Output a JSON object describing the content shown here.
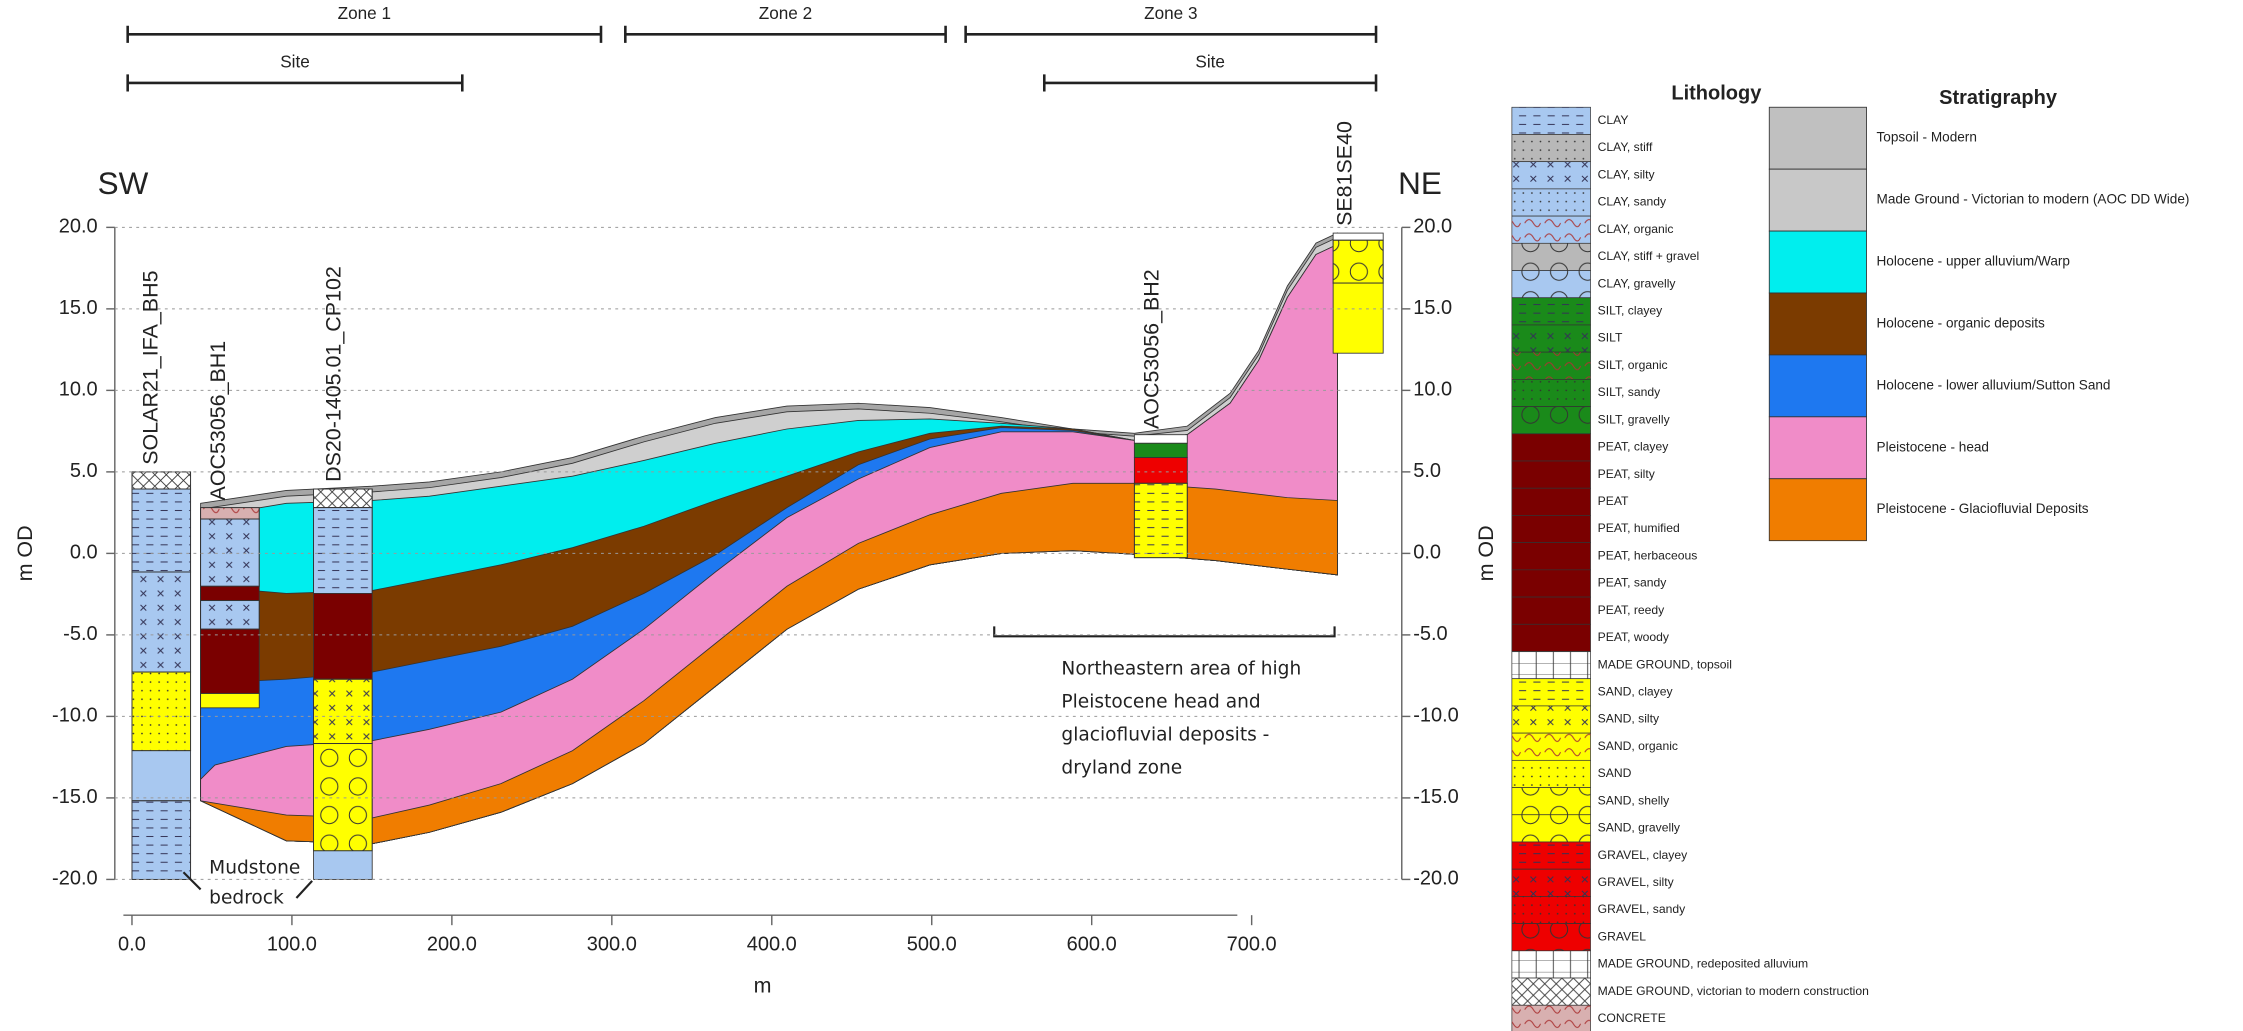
{
  "zones": [
    {
      "label": "Zone 1"
    },
    {
      "label": "Zone 2"
    },
    {
      "label": "Zone 3"
    }
  ],
  "sites": [
    {
      "label": "Site"
    },
    {
      "label": "Site"
    }
  ],
  "directions": {
    "left": "SW",
    "right": "NE"
  },
  "y_axis": {
    "label": "m OD",
    "ticks": [
      {
        "value": 20,
        "label": "20.0"
      },
      {
        "value": 15,
        "label": "15.0"
      },
      {
        "value": 10,
        "label": "10.0"
      },
      {
        "value": 5,
        "label": "5.0"
      },
      {
        "value": 0,
        "label": "0.0"
      },
      {
        "value": -5,
        "label": "-5.0"
      },
      {
        "value": -10,
        "label": "-10.0"
      },
      {
        "value": -15,
        "label": "-15.0"
      },
      {
        "value": -20,
        "label": "-20.0"
      }
    ]
  },
  "x_axis": {
    "label": "m",
    "ticks": [
      {
        "value": 0,
        "label": "0.0"
      },
      {
        "value": 100,
        "label": "100.0"
      },
      {
        "value": 200,
        "label": "200.0"
      },
      {
        "value": 300,
        "label": "300.0"
      },
      {
        "value": 400,
        "label": "400.0"
      },
      {
        "value": 500,
        "label": "500.0"
      },
      {
        "value": 600,
        "label": "600.0"
      },
      {
        "value": 700,
        "label": "700.0"
      }
    ]
  },
  "boreholes": [
    "SOLAR21_IFA_BH5",
    "AOC53056_BH1",
    "DS20-1405.01_CP102",
    "AOC53056_BH2",
    "SE81SE40"
  ],
  "annotations": {
    "bedrock": [
      "Mudstone",
      "bedrock"
    ],
    "dryland": [
      "Northeastern area of high",
      "Pleistocene head and",
      "glaciofluvial deposits -",
      "dryland zone"
    ]
  },
  "lithology": {
    "title": "Lithology",
    "items": [
      "CLAY",
      "CLAY, stiff",
      "CLAY, silty",
      "CLAY, sandy",
      "CLAY, organic",
      "CLAY, stiff + gravel",
      "CLAY, gravelly",
      "SILT, clayey",
      "SILT",
      "SILT, organic",
      "SILT, sandy",
      "SILT, gravelly",
      "PEAT, clayey",
      "PEAT, silty",
      "PEAT",
      "PEAT, humified",
      "PEAT, herbaceous",
      "PEAT, sandy",
      "PEAT, reedy",
      "PEAT, woody",
      "MADE GROUND, topsoil",
      "SAND, clayey",
      "SAND, silty",
      "SAND, organic",
      "SAND",
      "SAND, shelly",
      "SAND, gravelly",
      "GRAVEL, clayey",
      "GRAVEL, silty",
      "GRAVEL, sandy",
      "GRAVEL",
      "MADE GROUND,  redeposited alluvium",
      "MADE GROUND, victorian to modern construction",
      "CONCRETE"
    ]
  },
  "stratigraphy": {
    "title": "Stratigraphy",
    "items": [
      "Topsoil - Modern",
      "Made Ground - Victorian to modern (AOC DD Wide)",
      "Holocene - upper alluvium/Warp",
      "Holocene - organic deposits",
      "Holocene - lower alluvium/Sutton Sand",
      "Pleistocene - head",
      "Pleistocene - Glaciofluvial Deposits"
    ]
  }
}
